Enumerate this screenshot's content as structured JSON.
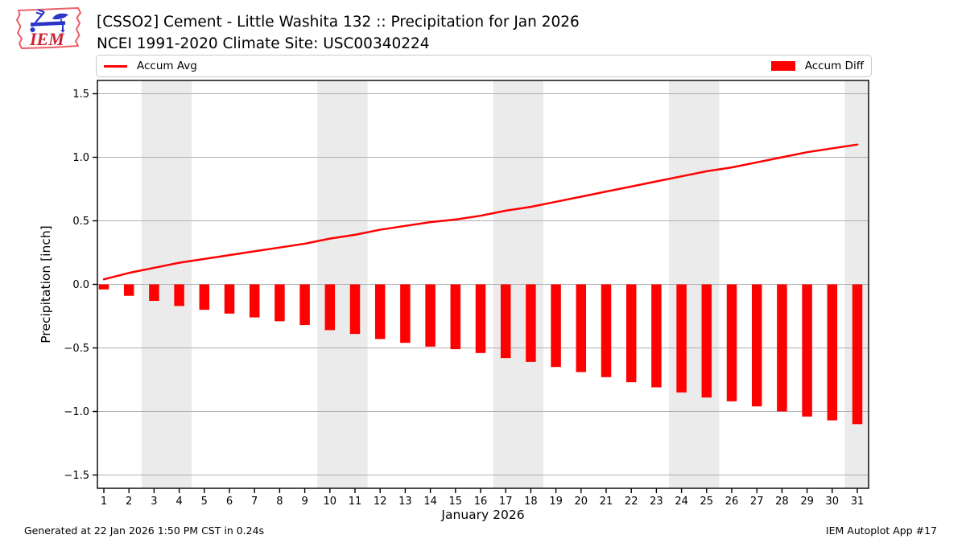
{
  "logo": {
    "text": "IEM"
  },
  "header": {
    "title_line1": "[CSSO2] Cement - Little Washita 132 :: Precipitation for Jan 2026",
    "title_line2": "NCEI 1991-2020 Climate Site: USC00340224"
  },
  "legend": {
    "avg_label": "Accum Avg",
    "diff_label": "Accum Diff"
  },
  "footer": {
    "generated": "Generated at 22 Jan 2026 1:50 PM CST in 0.24s",
    "app": "IEM Autoplot App #17"
  },
  "chart_data": {
    "type": "bar",
    "x": [
      1,
      2,
      3,
      4,
      5,
      6,
      7,
      8,
      9,
      10,
      11,
      12,
      13,
      14,
      15,
      16,
      17,
      18,
      19,
      20,
      21,
      22,
      23,
      24,
      25,
      26,
      27,
      28,
      29,
      30,
      31
    ],
    "series": [
      {
        "name": "Accum Avg",
        "type": "line",
        "color": "#ff0000",
        "values": [
          0.04,
          0.09,
          0.13,
          0.17,
          0.2,
          0.23,
          0.26,
          0.29,
          0.32,
          0.36,
          0.39,
          0.43,
          0.46,
          0.49,
          0.51,
          0.54,
          0.58,
          0.61,
          0.65,
          0.69,
          0.73,
          0.77,
          0.81,
          0.85,
          0.89,
          0.92,
          0.96,
          1.0,
          1.04,
          1.07,
          1.1
        ]
      },
      {
        "name": "Accum Diff",
        "type": "bar",
        "color": "#ff0000",
        "values": [
          -0.04,
          -0.09,
          -0.13,
          -0.17,
          -0.2,
          -0.23,
          -0.26,
          -0.29,
          -0.32,
          -0.36,
          -0.39,
          -0.43,
          -0.46,
          -0.49,
          -0.51,
          -0.54,
          -0.58,
          -0.61,
          -0.65,
          -0.69,
          -0.73,
          -0.77,
          -0.81,
          -0.85,
          -0.89,
          -0.92,
          -0.96,
          -1.0,
          -1.04,
          -1.07,
          -1.1
        ]
      }
    ],
    "title": "[CSSO2] Cement - Little Washita 132 :: Precipitation for Jan 2026",
    "xlabel": "January 2026",
    "ylabel": "Precipitation [inch]",
    "ylim": [
      -1.6,
      1.6
    ],
    "yticks": [
      {
        "v": 1.5,
        "label": "1.5"
      },
      {
        "v": 1.0,
        "label": "1.0"
      },
      {
        "v": 0.5,
        "label": "0.5"
      },
      {
        "v": 0.0,
        "label": "0.0"
      },
      {
        "v": -0.5,
        "label": "−0.5"
      },
      {
        "v": -1.0,
        "label": "−1.0"
      },
      {
        "v": -1.5,
        "label": "−1.5"
      }
    ],
    "weekend_bands": [
      [
        3,
        4
      ],
      [
        10,
        11
      ],
      [
        17,
        18
      ],
      [
        24,
        25
      ],
      [
        31,
        31
      ]
    ],
    "band_color": "#ebebeb",
    "grid_color": "#b0b0b0",
    "grid": true,
    "legend_position": "top"
  }
}
